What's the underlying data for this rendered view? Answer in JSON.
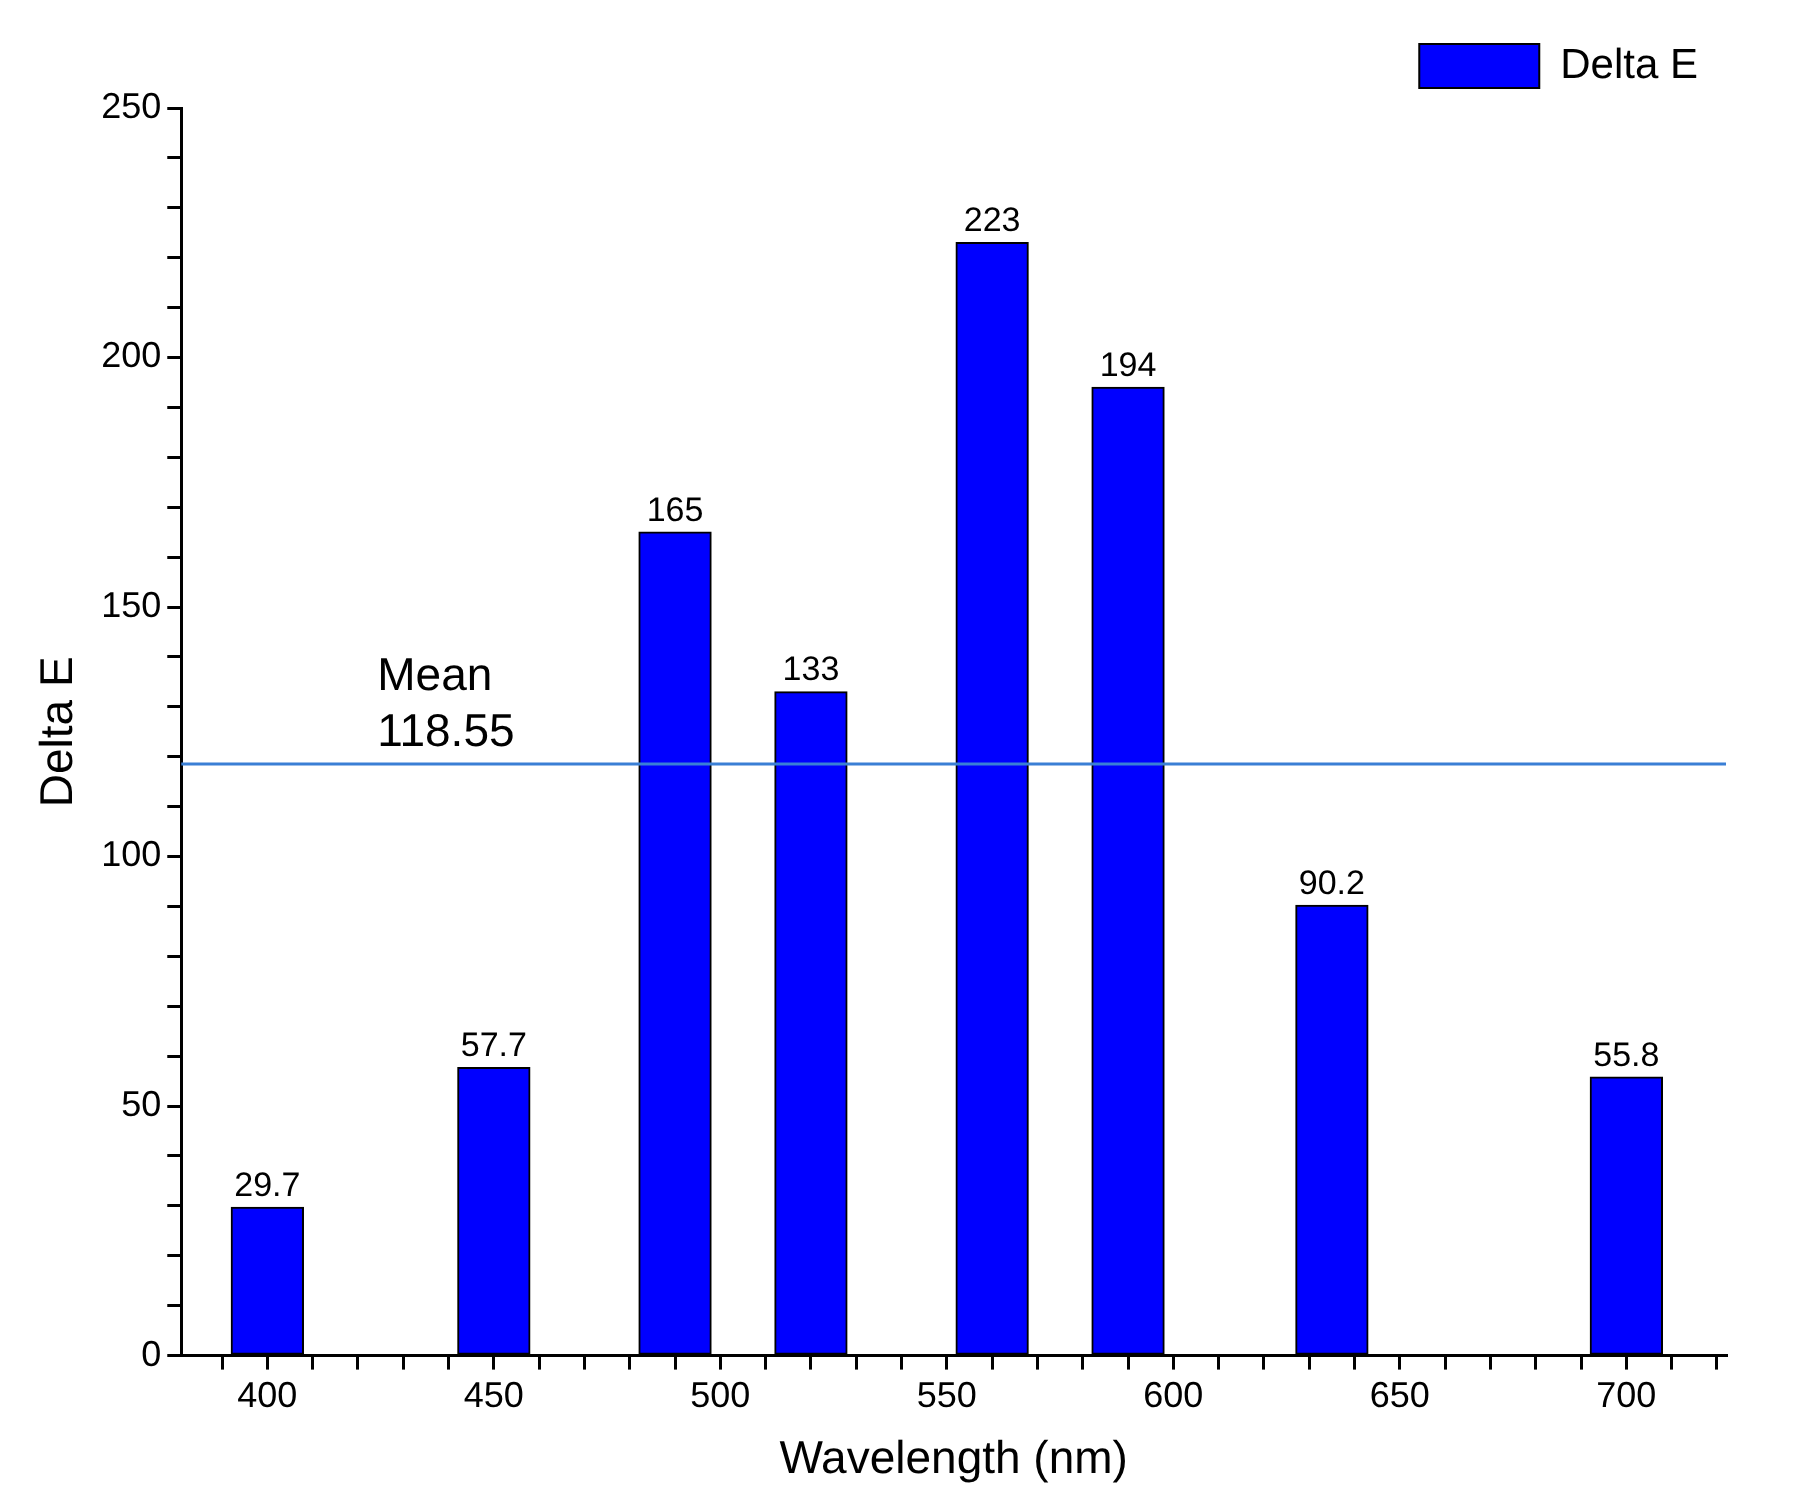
{
  "chart_data": {
    "type": "bar",
    "xlabel": "Wavelength (nm)",
    "ylabel": "Delta E",
    "x": [
      400,
      450,
      490,
      520,
      560,
      590,
      635,
      700
    ],
    "series": [
      {
        "name": "Delta E",
        "color": "#0000ff",
        "values": [
          29.7,
          57.7,
          165,
          133,
          223,
          194,
          90.2,
          55.8
        ]
      }
    ],
    "xlim": [
      381,
      722
    ],
    "xticks": [
      {
        "value": 390,
        "label": null
      },
      400,
      {
        "value": 410,
        "label": null
      },
      {
        "value": 420,
        "label": null
      },
      {
        "value": 430,
        "label": null
      },
      {
        "value": 440,
        "label": null
      },
      450,
      {
        "value": 460,
        "label": null
      },
      {
        "value": 470,
        "label": null
      },
      {
        "value": 480,
        "label": null
      },
      {
        "value": 490,
        "label": null
      },
      500,
      {
        "value": 510,
        "label": null
      },
      {
        "value": 520,
        "label": null
      },
      {
        "value": 530,
        "label": null
      },
      {
        "value": 540,
        "label": null
      },
      550,
      {
        "value": 560,
        "label": null
      },
      {
        "value": 570,
        "label": null
      },
      {
        "value": 580,
        "label": null
      },
      {
        "value": 590,
        "label": null
      },
      600,
      {
        "value": 610,
        "label": null
      },
      {
        "value": 620,
        "label": null
      },
      {
        "value": 630,
        "label": null
      },
      {
        "value": 640,
        "label": null
      },
      650,
      {
        "value": 660,
        "label": null
      },
      {
        "value": 670,
        "label": null
      },
      {
        "value": 680,
        "label": null
      },
      {
        "value": 690,
        "label": null
      },
      700,
      {
        "value": 710,
        "label": null
      },
      {
        "value": 720,
        "label": null
      }
    ],
    "ylim": [
      0,
      250
    ],
    "yticks": [
      0,
      {
        "value": 10,
        "label": null
      },
      {
        "value": 20,
        "label": null
      },
      {
        "value": 30,
        "label": null
      },
      {
        "value": 40,
        "label": null
      },
      50,
      {
        "value": 60,
        "label": null
      },
      {
        "value": 70,
        "label": null
      },
      {
        "value": 80,
        "label": null
      },
      {
        "value": 90,
        "label": null
      },
      100,
      {
        "value": 110,
        "label": null
      },
      {
        "value": 120,
        "label": null
      },
      {
        "value": 130,
        "label": null
      },
      {
        "value": 140,
        "label": null
      },
      150,
      {
        "value": 160,
        "label": null
      },
      {
        "value": 170,
        "label": null
      },
      {
        "value": 180,
        "label": null
      },
      {
        "value": 190,
        "label": null
      },
      200,
      {
        "value": 210,
        "label": null
      },
      {
        "value": 220,
        "label": null
      },
      {
        "value": 230,
        "label": null
      },
      {
        "value": 240,
        "label": null
      },
      250
    ],
    "ref_lines": [
      {
        "axis": "y",
        "value": 118.55,
        "label": "Mean\n118.55",
        "color": "#3a7fd5"
      }
    ],
    "data_labels": true,
    "legend": "top right"
  }
}
